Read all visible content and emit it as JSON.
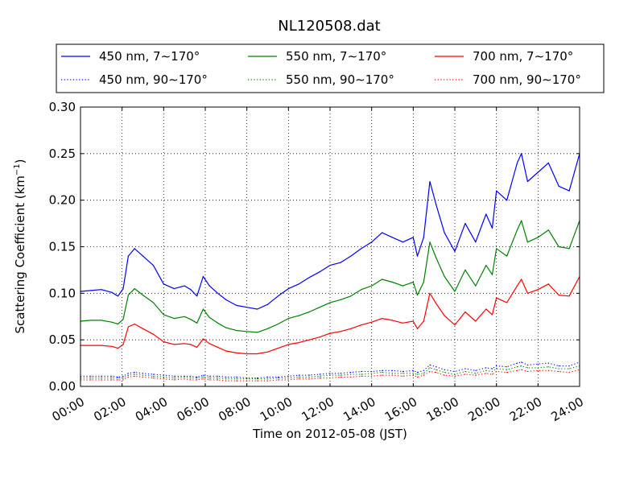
{
  "chart_data": {
    "type": "line",
    "title": "NL120508.dat",
    "xlabel": "Time on 2012-05-08 (JST)",
    "ylabel": "Scattering Coefficient (km",
    "ylabel_sup": "−1",
    "ylabel_close": ")",
    "xlim_hours": [
      0,
      24
    ],
    "ylim": [
      0,
      0.3
    ],
    "grid": true,
    "grid_style": "dotted",
    "legend_position": "top",
    "x_ticks": [
      {
        "hour": 0,
        "label": "00:00"
      },
      {
        "hour": 2,
        "label": "02:00"
      },
      {
        "hour": 4,
        "label": "04:00"
      },
      {
        "hour": 6,
        "label": "06:00"
      },
      {
        "hour": 8,
        "label": "08:00"
      },
      {
        "hour": 10,
        "label": "10:00"
      },
      {
        "hour": 12,
        "label": "12:00"
      },
      {
        "hour": 14,
        "label": "14:00"
      },
      {
        "hour": 16,
        "label": "16:00"
      },
      {
        "hour": 18,
        "label": "18:00"
      },
      {
        "hour": 20,
        "label": "20:00"
      },
      {
        "hour": 22,
        "label": "22:00"
      },
      {
        "hour": 24,
        "label": "24:00"
      }
    ],
    "y_ticks": [
      {
        "value": 0.0,
        "label": "0.00"
      },
      {
        "value": 0.05,
        "label": "0.05"
      },
      {
        "value": 0.1,
        "label": "0.10"
      },
      {
        "value": 0.15,
        "label": "0.15"
      },
      {
        "value": 0.2,
        "label": "0.20"
      },
      {
        "value": 0.25,
        "label": "0.25"
      },
      {
        "value": 0.3,
        "label": "0.30"
      }
    ],
    "x_hours": [
      0,
      0.5,
      1,
      1.5,
      1.8,
      2.05,
      2.3,
      2.6,
      3,
      3.5,
      4,
      4.5,
      5,
      5.3,
      5.6,
      5.9,
      6.2,
      6.6,
      7,
      7.5,
      8,
      8.5,
      9,
      9.5,
      10,
      10.5,
      11,
      11.5,
      12,
      12.5,
      13,
      13.5,
      14,
      14.5,
      15,
      15.5,
      16,
      16.2,
      16.5,
      16.8,
      17.1,
      17.5,
      18,
      18.5,
      19,
      19.5,
      19.8,
      20,
      20.5,
      21,
      21.2,
      21.5,
      22,
      22.5,
      23,
      23.5,
      24
    ],
    "series": [
      {
        "name": "450 nm, 7∼170°",
        "color": "#0000ff",
        "dash": "solid",
        "values": [
          0.102,
          0.103,
          0.104,
          0.101,
          0.097,
          0.105,
          0.14,
          0.148,
          0.14,
          0.13,
          0.11,
          0.105,
          0.108,
          0.104,
          0.097,
          0.118,
          0.108,
          0.1,
          0.093,
          0.087,
          0.085,
          0.083,
          0.088,
          0.097,
          0.105,
          0.11,
          0.117,
          0.123,
          0.13,
          0.133,
          0.14,
          0.148,
          0.155,
          0.165,
          0.16,
          0.155,
          0.16,
          0.14,
          0.16,
          0.22,
          0.195,
          0.165,
          0.145,
          0.175,
          0.155,
          0.185,
          0.17,
          0.21,
          0.2,
          0.24,
          0.25,
          0.22,
          0.23,
          0.24,
          0.215,
          0.21,
          0.25
        ]
      },
      {
        "name": "550 nm, 7∼170°",
        "color": "#008000",
        "dash": "solid",
        "values": [
          0.07,
          0.071,
          0.071,
          0.069,
          0.067,
          0.072,
          0.098,
          0.105,
          0.098,
          0.09,
          0.077,
          0.073,
          0.075,
          0.072,
          0.068,
          0.083,
          0.074,
          0.068,
          0.063,
          0.06,
          0.059,
          0.058,
          0.062,
          0.067,
          0.073,
          0.076,
          0.08,
          0.085,
          0.09,
          0.093,
          0.097,
          0.104,
          0.108,
          0.115,
          0.112,
          0.108,
          0.112,
          0.098,
          0.112,
          0.155,
          0.138,
          0.118,
          0.102,
          0.125,
          0.108,
          0.13,
          0.12,
          0.148,
          0.14,
          0.168,
          0.178,
          0.155,
          0.16,
          0.168,
          0.15,
          0.148,
          0.178
        ]
      },
      {
        "name": "700 nm, 7∼170°",
        "color": "#ff0000",
        "dash": "solid",
        "values": [
          0.044,
          0.044,
          0.044,
          0.043,
          0.041,
          0.045,
          0.064,
          0.067,
          0.062,
          0.056,
          0.048,
          0.045,
          0.046,
          0.045,
          0.042,
          0.051,
          0.046,
          0.042,
          0.038,
          0.036,
          0.035,
          0.035,
          0.037,
          0.041,
          0.045,
          0.047,
          0.05,
          0.053,
          0.057,
          0.059,
          0.062,
          0.066,
          0.069,
          0.073,
          0.071,
          0.068,
          0.07,
          0.062,
          0.07,
          0.1,
          0.089,
          0.076,
          0.066,
          0.08,
          0.07,
          0.083,
          0.077,
          0.095,
          0.09,
          0.108,
          0.115,
          0.1,
          0.104,
          0.11,
          0.098,
          0.097,
          0.118
        ]
      },
      {
        "name": "450 nm, 90∼170°",
        "color": "#0000ff",
        "dash": "dotted",
        "values": [
          0.011,
          0.011,
          0.011,
          0.011,
          0.01,
          0.011,
          0.014,
          0.015,
          0.014,
          0.013,
          0.012,
          0.011,
          0.011,
          0.011,
          0.01,
          0.012,
          0.011,
          0.011,
          0.01,
          0.01,
          0.009,
          0.009,
          0.01,
          0.01,
          0.011,
          0.012,
          0.012,
          0.013,
          0.014,
          0.014,
          0.015,
          0.016,
          0.016,
          0.017,
          0.017,
          0.016,
          0.017,
          0.015,
          0.017,
          0.023,
          0.021,
          0.018,
          0.016,
          0.019,
          0.017,
          0.02,
          0.019,
          0.022,
          0.021,
          0.025,
          0.026,
          0.023,
          0.024,
          0.025,
          0.022,
          0.022,
          0.026
        ]
      },
      {
        "name": "550 nm, 90∼170°",
        "color": "#008000",
        "dash": "dotted",
        "values": [
          0.009,
          0.009,
          0.009,
          0.009,
          0.009,
          0.009,
          0.012,
          0.013,
          0.012,
          0.011,
          0.01,
          0.009,
          0.01,
          0.009,
          0.009,
          0.01,
          0.009,
          0.009,
          0.008,
          0.008,
          0.008,
          0.008,
          0.008,
          0.009,
          0.009,
          0.01,
          0.01,
          0.011,
          0.012,
          0.012,
          0.013,
          0.013,
          0.014,
          0.015,
          0.014,
          0.014,
          0.014,
          0.013,
          0.014,
          0.02,
          0.018,
          0.015,
          0.013,
          0.016,
          0.014,
          0.017,
          0.016,
          0.019,
          0.018,
          0.021,
          0.022,
          0.02,
          0.02,
          0.021,
          0.019,
          0.019,
          0.022
        ]
      },
      {
        "name": "700 nm, 90∼170°",
        "color": "#ff0000",
        "dash": "dotted",
        "values": [
          0.007,
          0.007,
          0.007,
          0.007,
          0.007,
          0.007,
          0.01,
          0.011,
          0.01,
          0.009,
          0.008,
          0.007,
          0.008,
          0.007,
          0.007,
          0.008,
          0.007,
          0.007,
          0.006,
          0.006,
          0.006,
          0.006,
          0.006,
          0.007,
          0.007,
          0.008,
          0.008,
          0.009,
          0.009,
          0.01,
          0.01,
          0.011,
          0.011,
          0.012,
          0.012,
          0.011,
          0.012,
          0.01,
          0.012,
          0.016,
          0.015,
          0.012,
          0.011,
          0.013,
          0.012,
          0.014,
          0.013,
          0.016,
          0.015,
          0.017,
          0.018,
          0.016,
          0.017,
          0.017,
          0.016,
          0.015,
          0.018
        ]
      }
    ]
  }
}
